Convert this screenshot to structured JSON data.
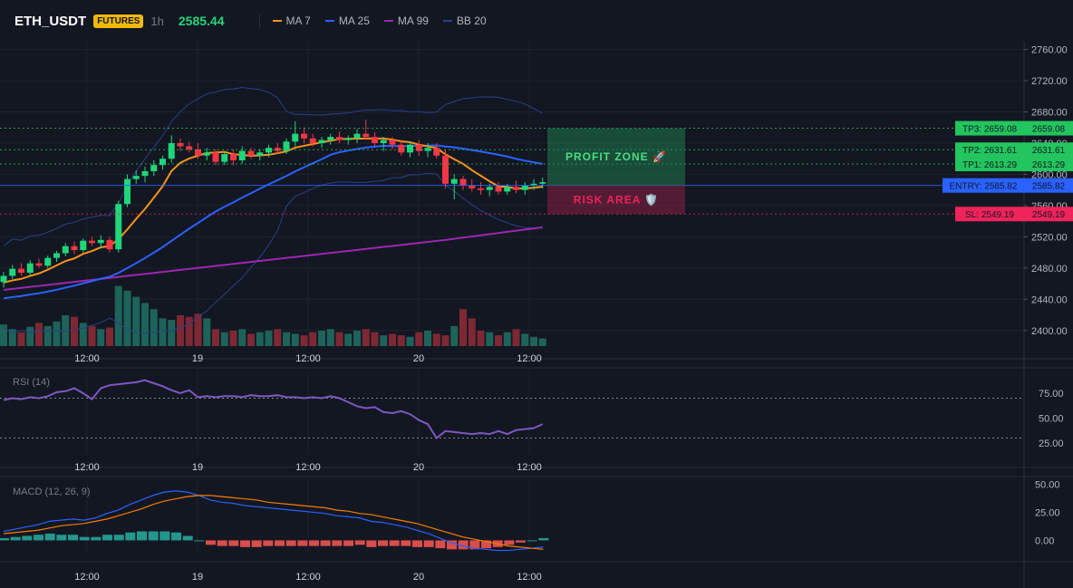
{
  "header": {
    "symbol": "ETH_USDT",
    "badge": "FUTURES",
    "interval": "1h",
    "price": "2585.44",
    "indicators": [
      {
        "label": "MA 7",
        "color": "#f7931a"
      },
      {
        "label": "MA 25",
        "color": "#2962ff"
      },
      {
        "label": "MA 99",
        "color": "#9c27b0"
      },
      {
        "label": "BB 20",
        "color": "#2b3f8a"
      }
    ]
  },
  "colors": {
    "up": "#26a69a",
    "upBright": "#1fd67a",
    "down": "#f23645",
    "ma7": "#f7931a",
    "ma25": "#2962ff",
    "ma99": "#9c27b0",
    "bb": "#2b3f8a",
    "rsi": "#7e57c2",
    "macd": "#2962ff",
    "signal": "#f57c00",
    "tp": "#22c55e",
    "entry": "#2962ff",
    "sl": "#f0245a"
  },
  "price_axis": {
    "min": 2380,
    "max": 2770,
    "ticks": [
      "2760.00",
      "2720.00",
      "2680.00",
      "2640.00",
      "2600.00",
      "2560.00",
      "2520.00",
      "2480.00",
      "2440.00",
      "2400.00"
    ]
  },
  "time_axis": {
    "labels": [
      "12:00",
      "19",
      "12:00",
      "20",
      "12:00"
    ]
  },
  "levels": [
    {
      "label": "TP3: 2659.08",
      "value": 2659.08,
      "price": "2659.08",
      "kind": "tp"
    },
    {
      "label": "TP2: 2631.61",
      "value": 2631.61,
      "price": "2631.61",
      "kind": "tp"
    },
    {
      "label": "TP1: 2613.29",
      "value": 2613.29,
      "price": "2613.29",
      "kind": "tp"
    },
    {
      "label": "ENTRY: 2585.82",
      "value": 2585.82,
      "price": "2585.82",
      "kind": "entry"
    },
    {
      "label": "SL: 2549.19",
      "value": 2549.19,
      "price": "2549.19",
      "kind": "sl"
    }
  ],
  "zones": {
    "profit": "PROFIT ZONE 🚀",
    "risk": "RISK AREA 🛡️"
  },
  "rsi": {
    "label": "RSI (14)",
    "ticks": [
      "75.00",
      "50.00",
      "25.00"
    ],
    "values": [
      68,
      70,
      69,
      71,
      70,
      72,
      76,
      77,
      80,
      75,
      69,
      80,
      83,
      84,
      85,
      86,
      88,
      85,
      82,
      78,
      75,
      78,
      71,
      72,
      71,
      72,
      72,
      71,
      73,
      72,
      72,
      73,
      71,
      71,
      70,
      71,
      70,
      72,
      70,
      66,
      62,
      60,
      61,
      56,
      55,
      57,
      54,
      48,
      44,
      30,
      37,
      36,
      35,
      34,
      35,
      34,
      37,
      34,
      38,
      39,
      40,
      44
    ],
    "upper": 70,
    "lower": 30
  },
  "macd": {
    "label": "MACD (12, 26, 9)",
    "ticks": [
      "50.00",
      "25.00",
      "0.00"
    ],
    "macd": [
      8,
      10,
      12,
      14,
      17,
      18,
      19,
      18,
      20,
      24,
      27,
      32,
      36,
      40,
      43,
      44,
      43,
      40,
      36,
      34,
      33,
      31,
      30,
      29,
      28,
      27,
      26,
      25,
      24,
      22,
      21,
      20,
      17,
      16,
      14,
      12,
      9,
      6,
      2,
      -2,
      -5,
      -7,
      -8,
      -9,
      -9,
      -8,
      -7,
      -6
    ],
    "signal": [
      6,
      7,
      8,
      9,
      11,
      13,
      14,
      15,
      17,
      19,
      22,
      25,
      28,
      32,
      35,
      37,
      39,
      40,
      40,
      39,
      38,
      37,
      36,
      34,
      33,
      32,
      31,
      30,
      29,
      27,
      26,
      24,
      23,
      21,
      19,
      17,
      15,
      12,
      9,
      6,
      3,
      1,
      -1,
      -3,
      -5,
      -6,
      -7,
      -8
    ],
    "hist": [
      2,
      3,
      4,
      5,
      6,
      5,
      5,
      3,
      3,
      5,
      5,
      7,
      8,
      8,
      8,
      7,
      4,
      0,
      -4,
      -5,
      -5,
      -6,
      -6,
      -5,
      -5,
      -5,
      -5,
      -5,
      -5,
      -5,
      -5,
      -4,
      -6,
      -5,
      -5,
      -5,
      -6,
      -6,
      -7,
      -8,
      -8,
      -8,
      -7,
      -6,
      -4,
      -2,
      0,
      2
    ]
  },
  "candles": [
    [
      2462,
      2475,
      2455,
      2470
    ],
    [
      2470,
      2484,
      2466,
      2479
    ],
    [
      2479,
      2486,
      2470,
      2474
    ],
    [
      2474,
      2490,
      2470,
      2486
    ],
    [
      2486,
      2492,
      2480,
      2483
    ],
    [
      2483,
      2496,
      2480,
      2493
    ],
    [
      2493,
      2502,
      2488,
      2499
    ],
    [
      2499,
      2512,
      2495,
      2508
    ],
    [
      2508,
      2514,
      2498,
      2503
    ],
    [
      2503,
      2518,
      2500,
      2515
    ],
    [
      2515,
      2520,
      2508,
      2512
    ],
    [
      2512,
      2522,
      2505,
      2516
    ],
    [
      2516,
      2520,
      2500,
      2504
    ],
    [
      2504,
      2566,
      2500,
      2562
    ],
    [
      2562,
      2600,
      2558,
      2594
    ],
    [
      2594,
      2605,
      2588,
      2598
    ],
    [
      2598,
      2610,
      2590,
      2604
    ],
    [
      2604,
      2618,
      2598,
      2612
    ],
    [
      2612,
      2624,
      2606,
      2620
    ],
    [
      2620,
      2650,
      2615,
      2640
    ],
    [
      2640,
      2646,
      2630,
      2636
    ],
    [
      2636,
      2642,
      2628,
      2632
    ],
    [
      2632,
      2640,
      2620,
      2624
    ],
    [
      2624,
      2634,
      2618,
      2628
    ],
    [
      2628,
      2632,
      2612,
      2616
    ],
    [
      2616,
      2630,
      2612,
      2626
    ],
    [
      2626,
      2632,
      2612,
      2618
    ],
    [
      2618,
      2636,
      2614,
      2630
    ],
    [
      2630,
      2634,
      2620,
      2624
    ],
    [
      2624,
      2632,
      2618,
      2628
    ],
    [
      2628,
      2638,
      2622,
      2634
    ],
    [
      2634,
      2640,
      2626,
      2630
    ],
    [
      2630,
      2646,
      2626,
      2642
    ],
    [
      2642,
      2668,
      2636,
      2652
    ],
    [
      2652,
      2660,
      2640,
      2646
    ],
    [
      2646,
      2652,
      2636,
      2640
    ],
    [
      2640,
      2648,
      2634,
      2644
    ],
    [
      2644,
      2652,
      2638,
      2648
    ],
    [
      2648,
      2655,
      2640,
      2644
    ],
    [
      2644,
      2650,
      2638,
      2646
    ],
    [
      2646,
      2658,
      2640,
      2652
    ],
    [
      2652,
      2670,
      2644,
      2648
    ],
    [
      2648,
      2654,
      2636,
      2640
    ],
    [
      2640,
      2648,
      2630,
      2644
    ],
    [
      2644,
      2648,
      2632,
      2638
    ],
    [
      2638,
      2644,
      2624,
      2628
    ],
    [
      2628,
      2642,
      2622,
      2638
    ],
    [
      2638,
      2644,
      2624,
      2630
    ],
    [
      2630,
      2640,
      2622,
      2634
    ],
    [
      2634,
      2640,
      2620,
      2624
    ],
    [
      2624,
      2632,
      2582,
      2588
    ],
    [
      2588,
      2600,
      2568,
      2594
    ],
    [
      2594,
      2598,
      2580,
      2586
    ],
    [
      2586,
      2594,
      2578,
      2582
    ],
    [
      2582,
      2590,
      2574,
      2580
    ],
    [
      2580,
      2588,
      2572,
      2584
    ],
    [
      2584,
      2590,
      2574,
      2578
    ],
    [
      2578,
      2588,
      2574,
      2584
    ],
    [
      2584,
      2592,
      2576,
      2580
    ],
    [
      2580,
      2590,
      2574,
      2586
    ],
    [
      2586,
      2594,
      2580,
      2588
    ],
    [
      2588,
      2596,
      2582,
      2590
    ]
  ],
  "volumes": [
    28,
    22,
    18,
    25,
    30,
    26,
    32,
    40,
    38,
    30,
    26,
    22,
    24,
    78,
    72,
    64,
    56,
    48,
    36,
    34,
    40,
    38,
    42,
    36,
    22,
    18,
    20,
    22,
    16,
    18,
    20,
    22,
    18,
    16,
    14,
    18,
    20,
    22,
    18,
    16,
    20,
    22,
    18,
    14,
    16,
    14,
    12,
    18,
    20,
    16,
    14,
    26,
    48,
    36,
    20,
    18,
    14,
    18,
    22,
    16,
    12,
    10
  ]
}
